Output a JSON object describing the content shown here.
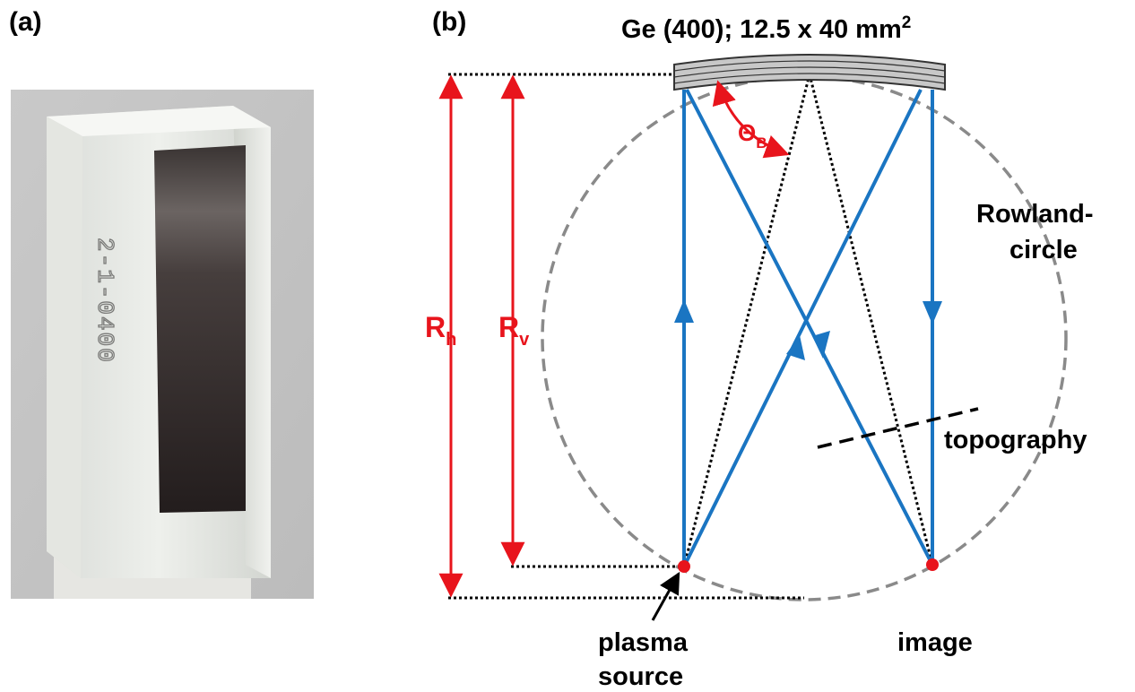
{
  "panels": {
    "a_label": "(a)",
    "b_label": "(b)"
  },
  "photo": {
    "engraving": "2-1-0400"
  },
  "diagram": {
    "crystal": {
      "name": "Ge (400); 12.5 x 40 mm",
      "unit_superscript": "2"
    },
    "angle": {
      "main": "Θ",
      "sub": "B"
    },
    "radius_h": {
      "main": "R",
      "sub": "h"
    },
    "radius_v": {
      "main": "R",
      "sub": "v"
    },
    "rowland": {
      "line1": "Rowland-",
      "line2": "circle"
    },
    "topography": "topography",
    "source": {
      "line1": "plasma",
      "line2": "source"
    },
    "image": "image",
    "colors": {
      "beam": "#1a75c2",
      "annotation": "#e8141c",
      "circle": "#8a8a8a",
      "crystal_fill": "#c8c8c8"
    }
  }
}
